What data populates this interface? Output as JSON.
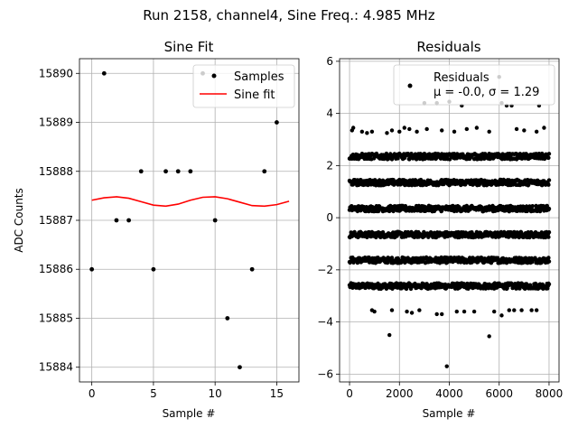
{
  "suptitle": "Run 2158, channel4, Sine Freq.: 4.985 MHz",
  "chart_data": [
    {
      "type": "scatter",
      "title": "Sine Fit",
      "xlabel": "Sample #",
      "ylabel": "ADC Counts",
      "xlim": [
        -1,
        16.8
      ],
      "ylim": [
        15883.7,
        15890.3
      ],
      "xticks": [
        0,
        5,
        10,
        15
      ],
      "xtick_labels": [
        "0",
        "5",
        "10",
        "15"
      ],
      "yticks": [
        15884,
        15885,
        15886,
        15887,
        15888,
        15889,
        15890
      ],
      "ytick_labels": [
        "15884",
        "15885",
        "15886",
        "15887",
        "15888",
        "15889",
        "15890"
      ],
      "grid": true,
      "legend_placement": "top-right",
      "colors": {
        "samples": "#000000",
        "fit": "#ff0000"
      },
      "series": [
        {
          "name": "Samples",
          "kind": "points",
          "x": [
            0,
            1,
            2,
            3,
            4,
            5,
            6,
            7,
            8,
            9,
            10,
            11,
            12,
            13,
            14,
            15
          ],
          "y": [
            15886,
            15890,
            15887,
            15887,
            15888,
            15886,
            15888,
            15888,
            15888,
            15890,
            15887,
            15885,
            15884,
            15886,
            15888,
            15889
          ]
        },
        {
          "name": "Sine fit",
          "kind": "line",
          "x": [
            0,
            1,
            2,
            3,
            4,
            5,
            6,
            7,
            8,
            9,
            10,
            11,
            12,
            13,
            14,
            15,
            16
          ],
          "y": [
            15887.41,
            15887.46,
            15887.48,
            15887.45,
            15887.38,
            15887.31,
            15887.29,
            15887.33,
            15887.41,
            15887.47,
            15887.48,
            15887.44,
            15887.37,
            15887.3,
            15887.29,
            15887.32,
            15887.39
          ]
        }
      ]
    },
    {
      "type": "scatter",
      "title": "Residuals",
      "xlabel": "Sample #",
      "ylabel": "",
      "xlim": [
        -400,
        8400
      ],
      "ylim": [
        -6.3,
        6.1
      ],
      "xticks": [
        0,
        2000,
        4000,
        6000,
        8000
      ],
      "xtick_labels": [
        "0",
        "2000",
        "4000",
        "6000",
        "8000"
      ],
      "yticks": [
        -6,
        -4,
        -2,
        0,
        2,
        4,
        6
      ],
      "ytick_labels": [
        "−6",
        "−4",
        "−2",
        "0",
        "2",
        "4",
        "6"
      ],
      "grid": true,
      "legend_placement": "top-right",
      "legend_text": [
        "Residuals",
        "μ = -0.0, σ = 1.29"
      ],
      "colors": {
        "points": "#000000"
      },
      "levels": [
        -2.62,
        -1.63,
        -0.65,
        0.35,
        1.35,
        2.35
      ],
      "level_range": [
        0,
        8000
      ],
      "outliers": [
        [
          100,
          3.35
        ],
        [
          150,
          3.45
        ],
        [
          500,
          3.3
        ],
        [
          700,
          3.25
        ],
        [
          900,
          3.3
        ],
        [
          1500,
          3.25
        ],
        [
          1700,
          3.35
        ],
        [
          2000,
          3.3
        ],
        [
          2200,
          3.45
        ],
        [
          2400,
          3.4
        ],
        [
          2700,
          3.3
        ],
        [
          3000,
          4.4
        ],
        [
          3100,
          3.4
        ],
        [
          3500,
          4.4
        ],
        [
          3700,
          3.35
        ],
        [
          4000,
          4.45
        ],
        [
          4200,
          3.3
        ],
        [
          4500,
          4.3
        ],
        [
          4700,
          3.4
        ],
        [
          5100,
          3.45
        ],
        [
          5600,
          3.3
        ],
        [
          6000,
          5.4
        ],
        [
          6100,
          4.4
        ],
        [
          6300,
          4.3
        ],
        [
          6500,
          4.3
        ],
        [
          6700,
          3.4
        ],
        [
          7000,
          3.35
        ],
        [
          7500,
          3.3
        ],
        [
          7600,
          4.3
        ],
        [
          7800,
          3.45
        ],
        [
          900,
          -3.55
        ],
        [
          1000,
          -3.6
        ],
        [
          1600,
          -4.5
        ],
        [
          1700,
          -3.55
        ],
        [
          2300,
          -3.6
        ],
        [
          2500,
          -3.65
        ],
        [
          2800,
          -3.55
        ],
        [
          3500,
          -3.7
        ],
        [
          3700,
          -3.7
        ],
        [
          3900,
          -5.7
        ],
        [
          4300,
          -3.6
        ],
        [
          4600,
          -3.6
        ],
        [
          5000,
          -3.6
        ],
        [
          5600,
          -4.55
        ],
        [
          5800,
          -3.6
        ],
        [
          6100,
          -3.75
        ],
        [
          6400,
          -3.55
        ],
        [
          6600,
          -3.55
        ],
        [
          6900,
          -3.55
        ],
        [
          7300,
          -3.55
        ],
        [
          7500,
          -3.55
        ]
      ]
    }
  ]
}
